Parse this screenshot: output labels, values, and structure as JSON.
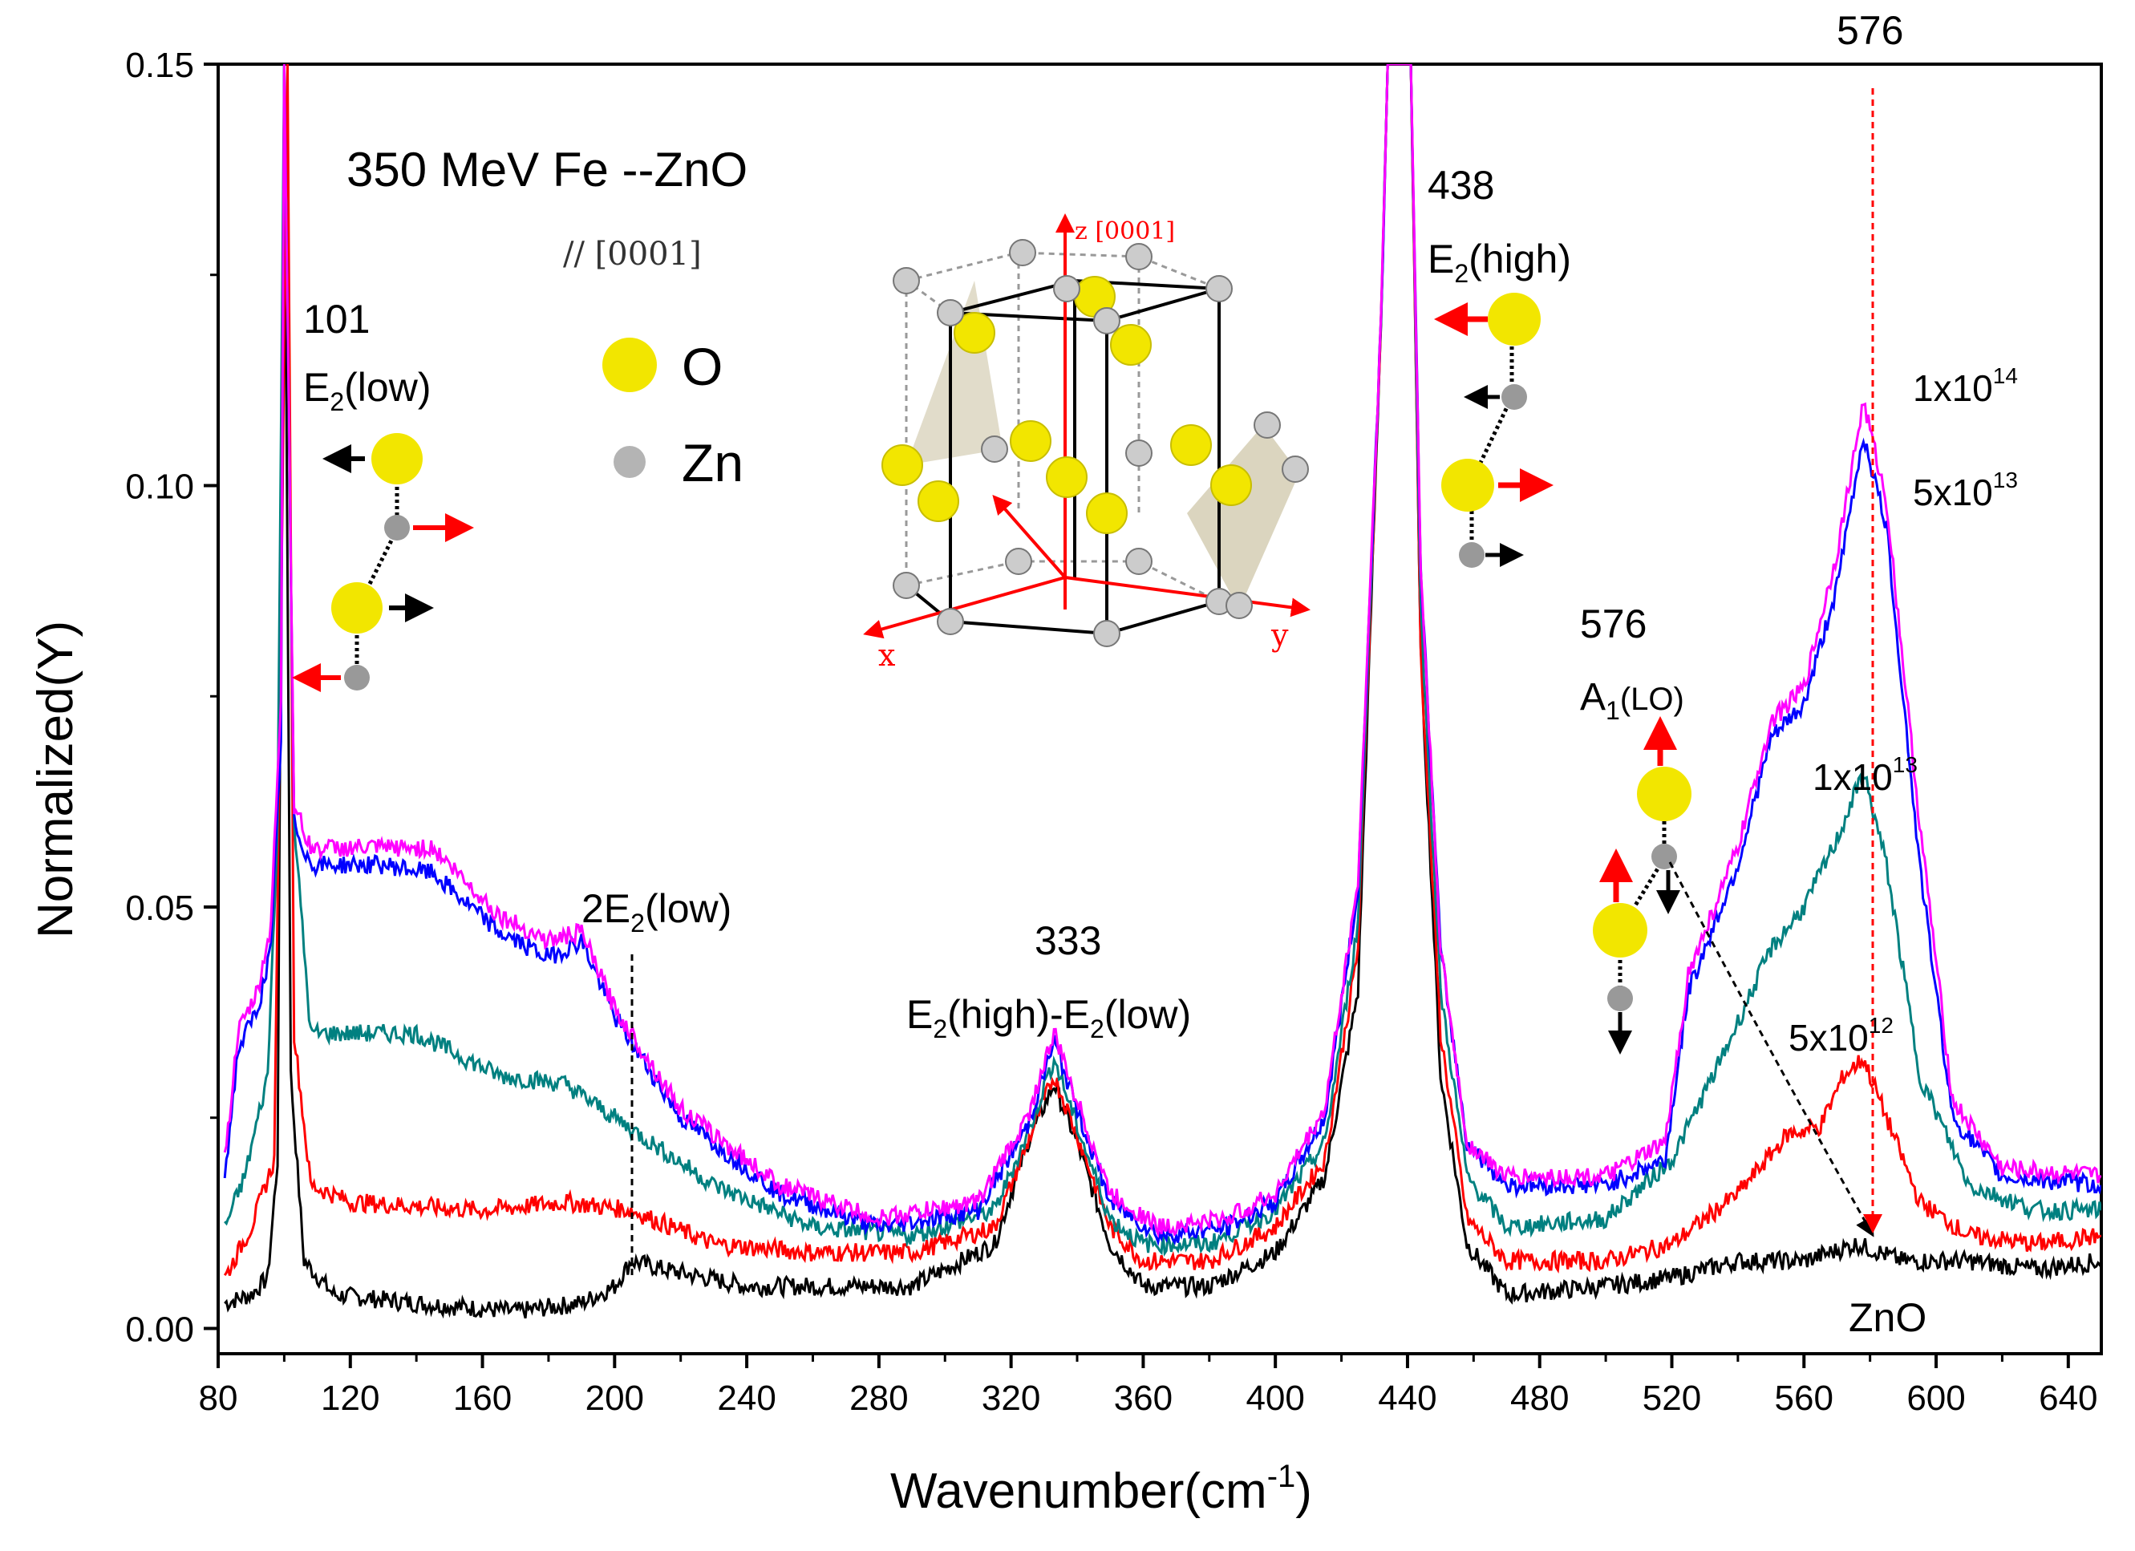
{
  "chart_data": {
    "type": "line",
    "title": "350 MeV Fe --ZnO",
    "subtitle": "// [0001]",
    "xlabel_main": "Wavenumber(cm",
    "xlabel_sup": "-1",
    "xlabel_end": ")",
    "ylabel": "Normalized(Y)",
    "xlim": [
      80,
      650
    ],
    "ylim": [
      -0.003,
      0.15
    ],
    "xticks": [
      80,
      120,
      160,
      200,
      240,
      280,
      320,
      360,
      400,
      440,
      480,
      520,
      560,
      600,
      640
    ],
    "yticks": [
      0.0,
      0.05,
      0.1,
      0.15
    ],
    "ytick_labels": [
      "0.00",
      "0.05",
      "0.10",
      "0.15"
    ],
    "legend": [
      {
        "symbol": "O",
        "color": "#f2e600"
      },
      {
        "symbol": "Zn",
        "color": "#b4b4b4"
      }
    ],
    "series": [
      {
        "name": "ZnO",
        "color": "#000000",
        "points": [
          [
            82,
            0.003
          ],
          [
            90,
            0.004
          ],
          [
            95,
            0.006
          ],
          [
            98,
            0.02
          ],
          [
            100,
            0.15
          ],
          [
            102,
            0.03
          ],
          [
            106,
            0.008
          ],
          [
            115,
            0.004
          ],
          [
            140,
            0.003
          ],
          [
            170,
            0.002
          ],
          [
            190,
            0.003
          ],
          [
            200,
            0.005
          ],
          [
            205,
            0.008
          ],
          [
            215,
            0.007
          ],
          [
            240,
            0.005
          ],
          [
            260,
            0.005
          ],
          [
            290,
            0.005
          ],
          [
            315,
            0.01
          ],
          [
            325,
            0.022
          ],
          [
            333,
            0.029
          ],
          [
            340,
            0.022
          ],
          [
            350,
            0.01
          ],
          [
            360,
            0.005
          ],
          [
            380,
            0.005
          ],
          [
            400,
            0.009
          ],
          [
            415,
            0.018
          ],
          [
            425,
            0.04
          ],
          [
            432,
            0.12
          ],
          [
            434,
            0.15
          ],
          [
            441,
            0.15
          ],
          [
            444,
            0.08
          ],
          [
            450,
            0.03
          ],
          [
            458,
            0.01
          ],
          [
            470,
            0.004
          ],
          [
            500,
            0.005
          ],
          [
            520,
            0.006
          ],
          [
            540,
            0.008
          ],
          [
            560,
            0.008
          ],
          [
            576,
            0.01
          ],
          [
            590,
            0.008
          ],
          [
            610,
            0.008
          ],
          [
            630,
            0.007
          ],
          [
            650,
            0.008
          ]
        ]
      },
      {
        "name": "5x10^12",
        "color": "#ff0000",
        "points": [
          [
            82,
            0.006
          ],
          [
            90,
            0.012
          ],
          [
            97,
            0.02
          ],
          [
            99,
            0.083
          ],
          [
            101,
            0.15
          ],
          [
            103,
            0.035
          ],
          [
            108,
            0.017
          ],
          [
            120,
            0.015
          ],
          [
            160,
            0.014
          ],
          [
            185,
            0.015
          ],
          [
            205,
            0.014
          ],
          [
            230,
            0.01
          ],
          [
            260,
            0.009
          ],
          [
            290,
            0.009
          ],
          [
            315,
            0.012
          ],
          [
            325,
            0.022
          ],
          [
            333,
            0.03
          ],
          [
            340,
            0.023
          ],
          [
            350,
            0.012
          ],
          [
            360,
            0.008
          ],
          [
            380,
            0.008
          ],
          [
            400,
            0.012
          ],
          [
            415,
            0.02
          ],
          [
            425,
            0.045
          ],
          [
            432,
            0.12
          ],
          [
            434,
            0.15
          ],
          [
            441,
            0.15
          ],
          [
            444,
            0.08
          ],
          [
            450,
            0.035
          ],
          [
            458,
            0.013
          ],
          [
            470,
            0.008
          ],
          [
            500,
            0.008
          ],
          [
            520,
            0.01
          ],
          [
            540,
            0.016
          ],
          [
            555,
            0.023
          ],
          [
            565,
            0.024
          ],
          [
            572,
            0.03
          ],
          [
            578,
            0.032
          ],
          [
            585,
            0.025
          ],
          [
            595,
            0.015
          ],
          [
            610,
            0.011
          ],
          [
            630,
            0.01
          ],
          [
            650,
            0.011
          ]
        ]
      },
      {
        "name": "1x10^13",
        "color": "#008080",
        "points": [
          [
            82,
            0.012
          ],
          [
            88,
            0.018
          ],
          [
            95,
            0.03
          ],
          [
            98,
            0.06
          ],
          [
            100,
            0.15
          ],
          [
            103,
            0.06
          ],
          [
            108,
            0.035
          ],
          [
            140,
            0.035
          ],
          [
            165,
            0.03
          ],
          [
            185,
            0.029
          ],
          [
            200,
            0.025
          ],
          [
            230,
            0.017
          ],
          [
            260,
            0.012
          ],
          [
            290,
            0.011
          ],
          [
            315,
            0.014
          ],
          [
            325,
            0.023
          ],
          [
            333,
            0.032
          ],
          [
            340,
            0.024
          ],
          [
            350,
            0.013
          ],
          [
            360,
            0.01
          ],
          [
            380,
            0.01
          ],
          [
            400,
            0.014
          ],
          [
            415,
            0.022
          ],
          [
            425,
            0.048
          ],
          [
            432,
            0.12
          ],
          [
            434,
            0.15
          ],
          [
            441,
            0.15
          ],
          [
            444,
            0.085
          ],
          [
            450,
            0.04
          ],
          [
            458,
            0.018
          ],
          [
            470,
            0.012
          ],
          [
            500,
            0.013
          ],
          [
            520,
            0.02
          ],
          [
            535,
            0.032
          ],
          [
            550,
            0.045
          ],
          [
            560,
            0.05
          ],
          [
            570,
            0.058
          ],
          [
            578,
            0.066
          ],
          [
            585,
            0.055
          ],
          [
            595,
            0.03
          ],
          [
            610,
            0.017
          ],
          [
            630,
            0.014
          ],
          [
            650,
            0.014
          ]
        ]
      },
      {
        "name": "5x10^13",
        "color": "#0000ff",
        "points": [
          [
            82,
            0.018
          ],
          [
            86,
            0.033
          ],
          [
            92,
            0.038
          ],
          [
            96,
            0.045
          ],
          [
            99,
            0.07
          ],
          [
            100,
            0.15
          ],
          [
            103,
            0.06
          ],
          [
            108,
            0.055
          ],
          [
            130,
            0.055
          ],
          [
            145,
            0.054
          ],
          [
            165,
            0.047
          ],
          [
            180,
            0.044
          ],
          [
            190,
            0.046
          ],
          [
            200,
            0.037
          ],
          [
            220,
            0.025
          ],
          [
            250,
            0.016
          ],
          [
            280,
            0.012
          ],
          [
            310,
            0.014
          ],
          [
            325,
            0.024
          ],
          [
            333,
            0.034
          ],
          [
            340,
            0.026
          ],
          [
            350,
            0.015
          ],
          [
            365,
            0.011
          ],
          [
            385,
            0.012
          ],
          [
            400,
            0.015
          ],
          [
            415,
            0.025
          ],
          [
            425,
            0.052
          ],
          [
            432,
            0.12
          ],
          [
            434,
            0.15
          ],
          [
            441,
            0.15
          ],
          [
            444,
            0.09
          ],
          [
            450,
            0.045
          ],
          [
            458,
            0.022
          ],
          [
            470,
            0.017
          ],
          [
            500,
            0.017
          ],
          [
            518,
            0.02
          ],
          [
            525,
            0.04
          ],
          [
            540,
            0.055
          ],
          [
            550,
            0.07
          ],
          [
            560,
            0.074
          ],
          [
            570,
            0.088
          ],
          [
            578,
            0.106
          ],
          [
            585,
            0.095
          ],
          [
            595,
            0.055
          ],
          [
            605,
            0.025
          ],
          [
            620,
            0.018
          ],
          [
            650,
            0.017
          ]
        ]
      },
      {
        "name": "1x10^14",
        "color": "#ff00ff",
        "points": [
          [
            82,
            0.02
          ],
          [
            86,
            0.035
          ],
          [
            92,
            0.04
          ],
          [
            96,
            0.048
          ],
          [
            99,
            0.075
          ],
          [
            100,
            0.15
          ],
          [
            103,
            0.062
          ],
          [
            108,
            0.057
          ],
          [
            130,
            0.057
          ],
          [
            145,
            0.057
          ],
          [
            165,
            0.049
          ],
          [
            180,
            0.046
          ],
          [
            190,
            0.047
          ],
          [
            200,
            0.038
          ],
          [
            220,
            0.026
          ],
          [
            250,
            0.017
          ],
          [
            280,
            0.013
          ],
          [
            310,
            0.015
          ],
          [
            325,
            0.025
          ],
          [
            333,
            0.035
          ],
          [
            340,
            0.027
          ],
          [
            350,
            0.016
          ],
          [
            365,
            0.012
          ],
          [
            385,
            0.013
          ],
          [
            400,
            0.016
          ],
          [
            415,
            0.026
          ],
          [
            425,
            0.053
          ],
          [
            432,
            0.12
          ],
          [
            434,
            0.15
          ],
          [
            441,
            0.15
          ],
          [
            444,
            0.09
          ],
          [
            450,
            0.045
          ],
          [
            458,
            0.022
          ],
          [
            470,
            0.018
          ],
          [
            500,
            0.018
          ],
          [
            518,
            0.022
          ],
          [
            525,
            0.042
          ],
          [
            540,
            0.057
          ],
          [
            550,
            0.072
          ],
          [
            560,
            0.076
          ],
          [
            570,
            0.092
          ],
          [
            578,
            0.11
          ],
          [
            585,
            0.098
          ],
          [
            595,
            0.06
          ],
          [
            605,
            0.027
          ],
          [
            620,
            0.019
          ],
          [
            650,
            0.018
          ]
        ]
      }
    ],
    "annotations": {
      "peak_101": "101",
      "e2low_main": "E",
      "e2low_sub": "2",
      "e2low_end": "(low)",
      "two_e2low_pre": "2E",
      "two_e2low_sub": "2",
      "two_e2low_end": "(low)",
      "peak_333": "333",
      "diff_a": "E",
      "diff_a_sub": "2",
      "diff_a_end": "(high)",
      "diff_b": "-E",
      "diff_b_sub": "2",
      "diff_b_end": "(low)",
      "peak_438": "438",
      "e2high_main": "E",
      "e2high_sub": "2",
      "e2high_end": "(high)",
      "peak_576_mid": "576",
      "a1lo_main": "A",
      "a1lo_sub": "1",
      "a1lo_end": "(LO)",
      "peak_576_top": "576",
      "znO": "ZnO",
      "fl_1e14": "1x10",
      "fl_1e14_exp": "14",
      "fl_5e13": "5x10",
      "fl_5e13_exp": "13",
      "fl_1e13": "1x10",
      "fl_1e13_exp": "13",
      "fl_5e12": "5x10",
      "fl_5e12_exp": "12"
    },
    "crystal": {
      "z_label": "z [0001]",
      "x_label": "x",
      "y_label": "y"
    }
  }
}
